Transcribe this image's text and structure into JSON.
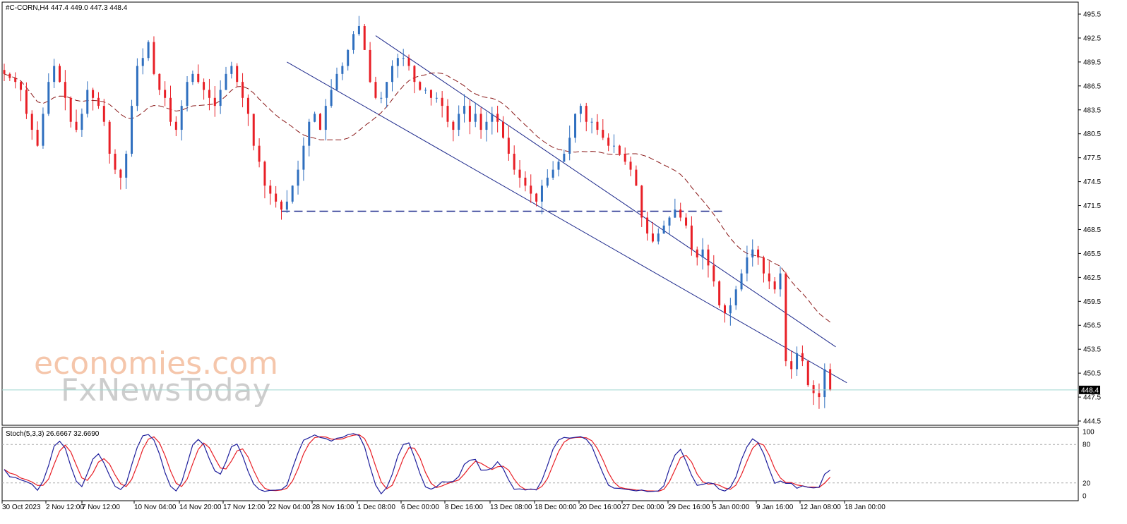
{
  "header": {
    "symbol_info": "#C-CORN,H4  447.4 449.0 447.3 448.4"
  },
  "stoch": {
    "label": "Stoch(5,3,3) 26.6667 32.6690",
    "ticks": [
      "100",
      "80",
      "20",
      "0"
    ]
  },
  "watermark": {
    "line1": "economies.com",
    "line2": "FxNewsToday"
  },
  "colors": {
    "bull": "#2f6fbf",
    "bear": "#e81f26",
    "ma": "#8b1a1a",
    "channel": "#1e2a8c",
    "support": "#1e2a8c",
    "stoch_main": "#1e1e9c",
    "stoch_signal": "#e81f26",
    "price_line": "#9fd8d0"
  },
  "chart_data": {
    "type": "candlestick",
    "price_axis": {
      "min": 444.5,
      "max": 495.5,
      "ticks": [
        "495.5",
        "492.5",
        "489.5",
        "486.5",
        "483.5",
        "480.5",
        "477.5",
        "474.5",
        "471.5",
        "468.5",
        "465.5",
        "462.5",
        "459.5",
        "456.5",
        "453.5",
        "450.5",
        "447.5",
        "444.5"
      ]
    },
    "current_price": "448.4",
    "time_labels": [
      "30 Oct 2023",
      "2 Nov 12:00",
      "7 Nov 12:00",
      "10 Nov 04:00",
      "14 Nov 20:00",
      "17 Nov 12:00",
      "22 Nov 04:00",
      "28 Nov 16:00",
      "1 Dec 08:00",
      "6 Dec 00:00",
      "8 Dec 16:00",
      "13 Dec 08:00",
      "18 Dec 00:00",
      "20 Dec 16:00",
      "27 Dec 00:00",
      "29 Dec 16:00",
      "5 Jan 00:00",
      "9 Jan 16:00",
      "12 Jan 08:00",
      "18 Jan 00:00"
    ],
    "closes": [
      488,
      487.5,
      487,
      486,
      483,
      481,
      479,
      483,
      487,
      489,
      487,
      485,
      482,
      481,
      483,
      486,
      485,
      484,
      482,
      478,
      476,
      475,
      478,
      484,
      489,
      490,
      492,
      488,
      486,
      485,
      482,
      481,
      484,
      487,
      488,
      487,
      486,
      485,
      484,
      486,
      488,
      489,
      487,
      485,
      483,
      479,
      477,
      474,
      473,
      472,
      471,
      472,
      474,
      476,
      479,
      482,
      483,
      481,
      484,
      486,
      488,
      489,
      491,
      493,
      494,
      491,
      487,
      485,
      485,
      487,
      489,
      490,
      490,
      489,
      487,
      486,
      486,
      485,
      485,
      484,
      482,
      481,
      483,
      484,
      482,
      483,
      481,
      482,
      483,
      482,
      480,
      478,
      476,
      475,
      474,
      473,
      472,
      474,
      475,
      476,
      477,
      478,
      480,
      483,
      484,
      482,
      482,
      481,
      480,
      479,
      479,
      478,
      477,
      476,
      474,
      470,
      468,
      467,
      468,
      469,
      470,
      471,
      470,
      469,
      466,
      465,
      466,
      464,
      462,
      459,
      458,
      459,
      461,
      463,
      465,
      466,
      465,
      463,
      462,
      461,
      463,
      452,
      451,
      453,
      452,
      449,
      448,
      447.5,
      451,
      448.4
    ],
    "ma_20": "dashed moving average (see closes)",
    "channel_upper": [
      [
        67,
        492.8
      ],
      [
        150,
        453.8
      ]
    ],
    "channel_lower": [
      [
        51,
        489.5
      ],
      [
        152,
        449.3
      ]
    ],
    "support_level": 470.8,
    "stoch_axis": {
      "min": 0,
      "max": 100
    }
  }
}
